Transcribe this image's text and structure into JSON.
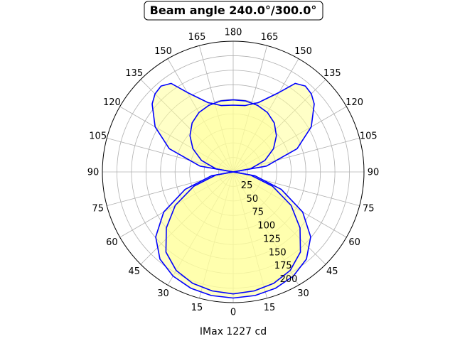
{
  "chart_data": {
    "type": "polar",
    "title": "Beam angle 240.0°/300.0°",
    "xlabel": "IMax 1227 cd",
    "angle_tick_labels": [
      "0",
      "15",
      "30",
      "45",
      "60",
      "75",
      "90",
      "105",
      "120",
      "135",
      "150",
      "165",
      "180",
      "165",
      "150",
      "135",
      "120",
      "105",
      "90",
      "75",
      "60",
      "45",
      "30",
      "15"
    ],
    "radial_ticks": [
      25,
      50,
      75,
      100,
      125,
      150,
      175,
      200
    ],
    "rlim": [
      0,
      225
    ],
    "grid": true,
    "colors": {
      "line": "#0000ff",
      "fill": "#ffff99",
      "grid": "#b0b0b0"
    },
    "series": [
      {
        "angles": [
          0,
          10,
          20,
          30,
          40,
          50,
          60,
          70,
          80,
          90,
          95,
          100,
          110,
          120,
          130,
          135,
          140,
          145,
          150,
          160,
          170,
          180
        ],
        "values": [
          217,
          216,
          213,
          207,
          196,
          174,
          138,
          88,
          38,
          0,
          0,
          58,
          117,
          155,
          182,
          190,
          193,
          186,
          158,
          127,
          116,
          115
        ]
      },
      {
        "angles": [
          0,
          10,
          20,
          30,
          40,
          50,
          60,
          70,
          80,
          90,
          100,
          110,
          120,
          130,
          140,
          150,
          160,
          170,
          180
        ],
        "values": [
          210,
          208,
          204,
          196,
          180,
          150,
          115,
          72,
          30,
          0,
          30,
          58,
          80,
          97,
          110,
          118,
          122,
          124,
          124
        ]
      }
    ]
  }
}
